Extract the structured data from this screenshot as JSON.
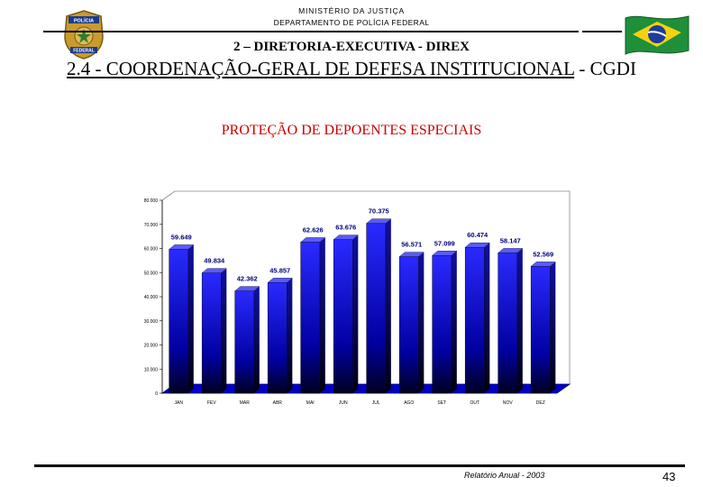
{
  "header": {
    "ministry": "MINISTÉRIO DA JUSTIÇA",
    "department": "DEPARTAMENTO DE POLÍCIA FEDERAL",
    "badge_text_top": "POLÍCIA",
    "badge_text_bottom": "FEDERAL"
  },
  "title": {
    "directorate": "2 – DIRETORIA-EXECUTIVA - DIREX",
    "coordination_code": "2.4 - ",
    "coordination_name": "COORDENAÇÃO-GERAL DE DEFESA INSTITUCIONAL",
    "coordination_suffix": " - CGDI"
  },
  "chart_data": {
    "type": "bar",
    "title": "PROTEÇÃO DE DEPOENTES ESPECIAIS",
    "categories": [
      "JAN",
      "FEV",
      "MAR",
      "ABR",
      "MAI",
      "JUN",
      "JUL",
      "AGO",
      "SET",
      "OUT",
      "NOV",
      "DEZ"
    ],
    "values": [
      59.649,
      49.834,
      42.362,
      45.857,
      62.626,
      63.676,
      70.375,
      56.571,
      57.099,
      60.474,
      58.147,
      52.569
    ],
    "value_labels": [
      "59.649",
      "49.834",
      "42.362",
      "45.857",
      "62.626",
      "63.676",
      "70.375",
      "56.571",
      "57.099",
      "60.474",
      "58.147",
      "52.569"
    ],
    "ylim": [
      0,
      80
    ],
    "yticks": [
      "0",
      "10.000",
      "20.000",
      "30.000",
      "40.000",
      "50.000",
      "60.000",
      "70.000",
      "80.000"
    ],
    "grid": false,
    "style": "3d-column",
    "colors": {
      "bar_top": "#2a2aff",
      "bar_bottom": "#000020",
      "wall": "#ffffff",
      "floor": "#0000c8",
      "label": "#000080"
    }
  },
  "footer": {
    "report": "Relatório Anual - 2003",
    "page": "43"
  }
}
